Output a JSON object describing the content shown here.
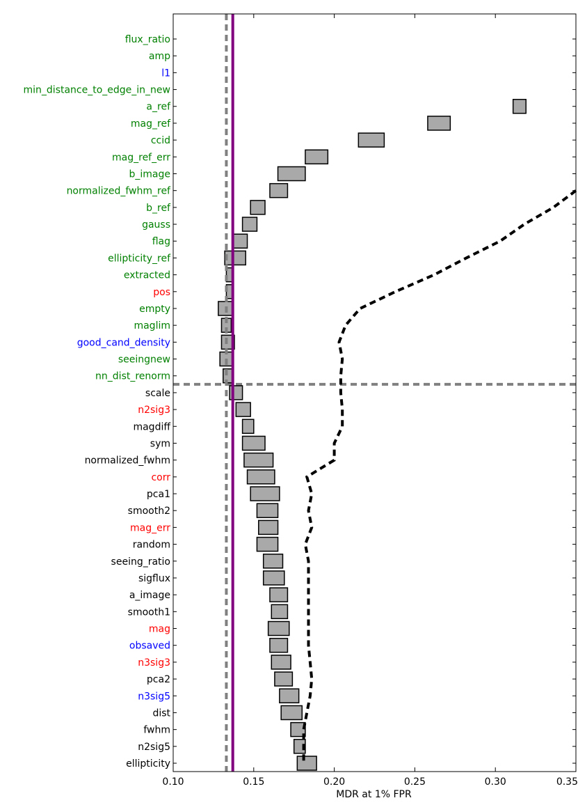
{
  "chart_data": {
    "type": "floating-bar",
    "title": "",
    "xlabel": "MDR at 1% FPR",
    "ylabel": "",
    "xlim": [
      0.1,
      0.35
    ],
    "xticks": [
      "0.10",
      "0.15",
      "0.20",
      "0.25",
      "0.30",
      "0.35"
    ],
    "xtick_values": [
      0.1,
      0.15,
      0.2,
      0.25,
      0.3,
      0.35
    ],
    "label_colors": {
      "green": "#008000",
      "blue": "#0000ff",
      "red": "#ff0000",
      "black": "#000000"
    },
    "bar_color": "#a9a9a9",
    "features": [
      {
        "name": "flux_ratio",
        "color": "green",
        "low": null,
        "high": null
      },
      {
        "name": "amp",
        "color": "green",
        "low": null,
        "high": null
      },
      {
        "name": "l1",
        "color": "blue",
        "low": null,
        "high": null
      },
      {
        "name": "min_distance_to_edge_in_new",
        "color": "green",
        "low": null,
        "high": null
      },
      {
        "name": "a_ref",
        "color": "green",
        "low": 0.311,
        "high": 0.319
      },
      {
        "name": "mag_ref",
        "color": "green",
        "low": 0.258,
        "high": 0.272
      },
      {
        "name": "ccid",
        "color": "green",
        "low": 0.215,
        "high": 0.231
      },
      {
        "name": "mag_ref_err",
        "color": "green",
        "low": 0.182,
        "high": 0.196
      },
      {
        "name": "b_image",
        "color": "green",
        "low": 0.165,
        "high": 0.182
      },
      {
        "name": "normalized_fwhm_ref",
        "color": "green",
        "low": 0.16,
        "high": 0.171
      },
      {
        "name": "b_ref",
        "color": "green",
        "low": 0.148,
        "high": 0.157
      },
      {
        "name": "gauss",
        "color": "green",
        "low": 0.143,
        "high": 0.152
      },
      {
        "name": "flag",
        "color": "green",
        "low": 0.137,
        "high": 0.146
      },
      {
        "name": "ellipticity_ref",
        "color": "green",
        "low": 0.132,
        "high": 0.145
      },
      {
        "name": "extracted",
        "color": "green",
        "low": 0.133,
        "high": 0.137
      },
      {
        "name": "pos",
        "color": "red",
        "low": 0.133,
        "high": 0.137
      },
      {
        "name": "empty",
        "color": "green",
        "low": 0.128,
        "high": 0.137
      },
      {
        "name": "maglim",
        "color": "green",
        "low": 0.13,
        "high": 0.136
      },
      {
        "name": "good_cand_density",
        "color": "blue",
        "low": 0.13,
        "high": 0.138
      },
      {
        "name": "seeingnew",
        "color": "green",
        "low": 0.129,
        "high": 0.137
      },
      {
        "name": "nn_dist_renorm",
        "color": "green",
        "low": 0.131,
        "high": 0.137
      },
      {
        "name": "scale",
        "color": "black",
        "low": 0.135,
        "high": 0.143
      },
      {
        "name": "n2sig3",
        "color": "red",
        "low": 0.139,
        "high": 0.148
      },
      {
        "name": "magdiff",
        "color": "black",
        "low": 0.143,
        "high": 0.15
      },
      {
        "name": "sym",
        "color": "black",
        "low": 0.143,
        "high": 0.157
      },
      {
        "name": "normalized_fwhm",
        "color": "black",
        "low": 0.144,
        "high": 0.162
      },
      {
        "name": "corr",
        "color": "red",
        "low": 0.146,
        "high": 0.163
      },
      {
        "name": "pca1",
        "color": "black",
        "low": 0.148,
        "high": 0.166
      },
      {
        "name": "smooth2",
        "color": "black",
        "low": 0.152,
        "high": 0.165
      },
      {
        "name": "mag_err",
        "color": "red",
        "low": 0.153,
        "high": 0.165
      },
      {
        "name": "random",
        "color": "black",
        "low": 0.152,
        "high": 0.165
      },
      {
        "name": "seeing_ratio",
        "color": "black",
        "low": 0.156,
        "high": 0.168
      },
      {
        "name": "sigflux",
        "color": "black",
        "low": 0.156,
        "high": 0.169
      },
      {
        "name": "a_image",
        "color": "black",
        "low": 0.16,
        "high": 0.171
      },
      {
        "name": "smooth1",
        "color": "black",
        "low": 0.161,
        "high": 0.171
      },
      {
        "name": "mag",
        "color": "red",
        "low": 0.159,
        "high": 0.172
      },
      {
        "name": "obsaved",
        "color": "blue",
        "low": 0.16,
        "high": 0.171
      },
      {
        "name": "n3sig3",
        "color": "red",
        "low": 0.161,
        "high": 0.173
      },
      {
        "name": "pca2",
        "color": "black",
        "low": 0.163,
        "high": 0.174
      },
      {
        "name": "n3sig5",
        "color": "blue",
        "low": 0.166,
        "high": 0.178
      },
      {
        "name": "dist",
        "color": "black",
        "low": 0.167,
        "high": 0.18
      },
      {
        "name": "fwhm",
        "color": "black",
        "low": 0.173,
        "high": 0.182
      },
      {
        "name": "n2sig5",
        "color": "black",
        "low": 0.175,
        "high": 0.182
      },
      {
        "name": "ellipticity",
        "color": "black",
        "low": 0.177,
        "high": 0.189
      }
    ],
    "reference_lines": {
      "purple_solid_x": 0.137,
      "purple_color": "#800080",
      "gray_dashed_x": 0.133,
      "gray_dashed_horizontal_between": [
        "nn_dist_renorm",
        "scale"
      ],
      "gray_color": "#808080"
    },
    "dashed_curve": {
      "color": "#000000",
      "points": [
        {
          "x": 0.35,
          "y": "normalized_fwhm_ref"
        },
        {
          "x": 0.336,
          "y": "b_ref"
        },
        {
          "x": 0.318,
          "y": "gauss"
        },
        {
          "x": 0.303,
          "y": "flag"
        },
        {
          "x": 0.282,
          "y": "ellipticity_ref"
        },
        {
          "x": 0.262,
          "y": "extracted"
        },
        {
          "x": 0.238,
          "y": "pos"
        },
        {
          "x": 0.216,
          "y": "empty"
        },
        {
          "x": 0.207,
          "y": "maglim"
        },
        {
          "x": 0.203,
          "y": "good_cand_density"
        },
        {
          "x": 0.205,
          "y": "seeingnew"
        },
        {
          "x": 0.204,
          "y": "nn_dist_renorm"
        },
        {
          "x": 0.204,
          "y": "scale"
        },
        {
          "x": 0.205,
          "y": "n2sig3"
        },
        {
          "x": 0.205,
          "y": "magdiff"
        },
        {
          "x": 0.2,
          "y": "sym"
        },
        {
          "x": 0.2,
          "y": "normalized_fwhm"
        },
        {
          "x": 0.183,
          "y": "corr"
        },
        {
          "x": 0.186,
          "y": "pca1"
        },
        {
          "x": 0.184,
          "y": "smooth2"
        },
        {
          "x": 0.186,
          "y": "mag_err"
        },
        {
          "x": 0.182,
          "y": "random"
        },
        {
          "x": 0.184,
          "y": "seeing_ratio"
        },
        {
          "x": 0.184,
          "y": "sigflux"
        },
        {
          "x": 0.184,
          "y": "a_image"
        },
        {
          "x": 0.184,
          "y": "smooth1"
        },
        {
          "x": 0.184,
          "y": "mag"
        },
        {
          "x": 0.184,
          "y": "obsaved"
        },
        {
          "x": 0.185,
          "y": "n3sig3"
        },
        {
          "x": 0.186,
          "y": "pca2"
        },
        {
          "x": 0.185,
          "y": "n3sig5"
        },
        {
          "x": 0.183,
          "y": "dist"
        },
        {
          "x": 0.181,
          "y": "fwhm"
        },
        {
          "x": 0.181,
          "y": "n2sig5"
        },
        {
          "x": 0.181,
          "y": "ellipticity"
        }
      ]
    }
  }
}
